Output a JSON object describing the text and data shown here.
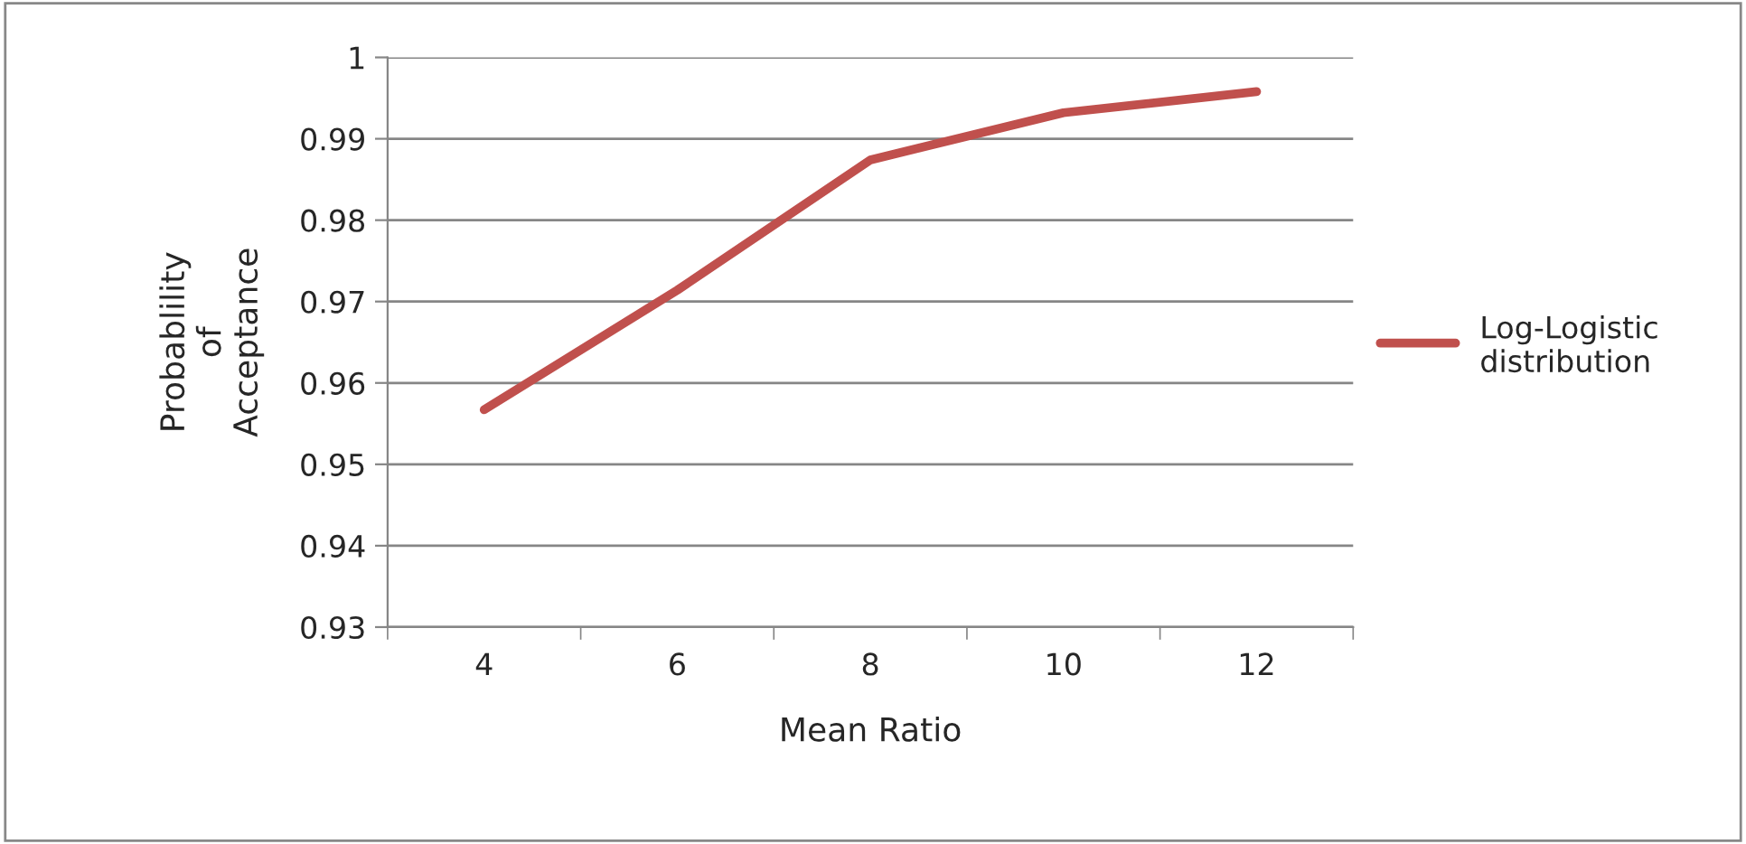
{
  "chart_data": {
    "type": "line",
    "xlabel": "Mean Ratio",
    "ylabel": "Probablility\nof\nAcceptance",
    "categories": [
      "4",
      "6",
      "8",
      "10",
      "12"
    ],
    "series": [
      {
        "name": "Log-Logistic distribution",
        "color": "#c0504d",
        "values": [
          0.9567,
          0.9714,
          0.9874,
          0.9932,
          0.9958
        ]
      }
    ],
    "ylim": [
      0.93,
      1
    ],
    "yticks": [
      0.93,
      0.94,
      0.95,
      0.96,
      0.97,
      0.98,
      0.99,
      1
    ],
    "grid": "y",
    "legend": "right",
    "marker": "none",
    "line_style": "solid"
  }
}
